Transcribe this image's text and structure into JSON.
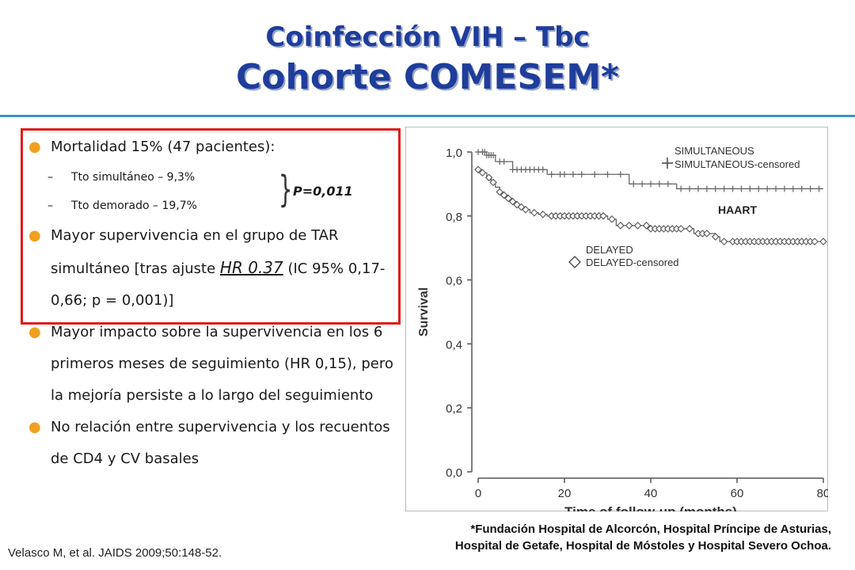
{
  "slide": {
    "title_line1": "Coinfección VIH – Tbc",
    "title_line2": "Cohorte COMESEM*",
    "bullets": {
      "mortality": "Mortalidad 15% (47 pacientes):",
      "sub1": "Tto simultáneo – 9,3%",
      "sub2": "Tto demorado – 19,7%",
      "pvalue": "P=0,011",
      "survival_part1": "Mayor supervivencia en el grupo de TAR simultáneo [tras ajuste ",
      "survival_hr": "HR 0.37",
      "survival_part2": " (IC 95% 0,17-0,66; p = 0,001)]",
      "impact": "Mayor impacto sobre la supervivencia en los 6 primeros meses de seguimiento (HR 0,15), pero la mejoría persiste a lo largo del seguimiento",
      "cd4": "No relación entre supervivencia y los recuentos de CD4 y CV basales"
    },
    "footnote_line1": "*Fundación Hospital de Alcorcón, Hospital Príncipe de Asturias,",
    "footnote_line2": "Hospital de Getafe, Hospital de Móstoles y Hospital Severo Ochoa.",
    "citation": "Velasco M, et al. JAIDS 2009;50:148-52.",
    "colors": {
      "title": "#1f3d9a",
      "bullet": "#f0a020",
      "box": "#e01a1a",
      "rule": "#3a8fd0"
    }
  },
  "chart_data": {
    "type": "line",
    "xlabel": "Time of follow-up (months)",
    "ylabel": "Survival",
    "xlim": [
      0,
      80
    ],
    "ylim": [
      0,
      1.0
    ],
    "xticks": [
      "0",
      "20",
      "40",
      "60",
      "80"
    ],
    "yticks": [
      "0,0",
      "0,2",
      "0,4",
      "0,6",
      "0,8",
      "1,0"
    ],
    "annotation": "HAART",
    "legend": [
      {
        "label": "SIMULTANEOUS",
        "marker": "none"
      },
      {
        "label": "SIMULTANEOUS-censored",
        "marker": "plus"
      },
      {
        "label": "DELAYED",
        "marker": "none"
      },
      {
        "label": "DELAYED-censored",
        "marker": "diamond"
      }
    ],
    "series": [
      {
        "name": "SIMULTANEOUS",
        "marker": "plus",
        "steps": [
          [
            0,
            1.0
          ],
          [
            2,
            0.99
          ],
          [
            4,
            0.97
          ],
          [
            8,
            0.945
          ],
          [
            16,
            0.93
          ],
          [
            35,
            0.9
          ],
          [
            46,
            0.885
          ],
          [
            80,
            0.885
          ]
        ],
        "censored": [
          0,
          1,
          1.5,
          2,
          2.5,
          3,
          3.5,
          5,
          6,
          8,
          9,
          10,
          11,
          12,
          13,
          14,
          15,
          17,
          19,
          20,
          22,
          24,
          27,
          30,
          33,
          36,
          38,
          40,
          42,
          44,
          47,
          49,
          51,
          53,
          55,
          57,
          59,
          61,
          63,
          65,
          67,
          69,
          71,
          73,
          75,
          77,
          79
        ]
      },
      {
        "name": "DELAYED",
        "marker": "diamond",
        "steps": [
          [
            0,
            0.945
          ],
          [
            1,
            0.935
          ],
          [
            2,
            0.92
          ],
          [
            3,
            0.905
          ],
          [
            4,
            0.89
          ],
          [
            5,
            0.875
          ],
          [
            6,
            0.865
          ],
          [
            7,
            0.855
          ],
          [
            8,
            0.845
          ],
          [
            9,
            0.835
          ],
          [
            10,
            0.828
          ],
          [
            11,
            0.82
          ],
          [
            12,
            0.81
          ],
          [
            14,
            0.805
          ],
          [
            16,
            0.8
          ],
          [
            30,
            0.79
          ],
          [
            32,
            0.77
          ],
          [
            40,
            0.76
          ],
          [
            50,
            0.745
          ],
          [
            55,
            0.735
          ],
          [
            56,
            0.72
          ],
          [
            80,
            0.72
          ]
        ],
        "censored": [
          0,
          1,
          2.5,
          3.5,
          5,
          6,
          7,
          8,
          9,
          10,
          11,
          13,
          15,
          17,
          18,
          19,
          20,
          21,
          22,
          23,
          24,
          25,
          26,
          27,
          28,
          29,
          31,
          33,
          35,
          37,
          39,
          40,
          41,
          42,
          43,
          44,
          45,
          46,
          47,
          49,
          51,
          52,
          53,
          55,
          57,
          59,
          60,
          61,
          62,
          63,
          64,
          65,
          66,
          67,
          68,
          69,
          70,
          71,
          72,
          73,
          74,
          75,
          76,
          77,
          78,
          80
        ]
      }
    ]
  }
}
